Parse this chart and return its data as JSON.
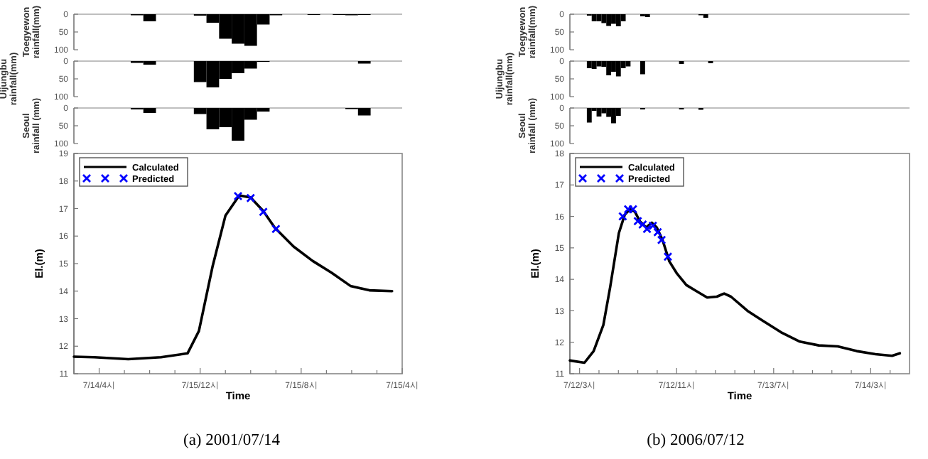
{
  "chart_data": [
    {
      "type": "bar",
      "ylabel": "Toegyewon rainfall(mm)",
      "color": "#000000",
      "xlim": [
        "2001-07-14T14:00",
        "2001-07-15T16:00"
      ],
      "ylim": [
        100,
        0
      ],
      "yticks": [
        0,
        50,
        100
      ],
      "tick_labels": "y",
      "x": [
        "2001-07-14T19:00",
        "2001-07-14T20:00",
        "2001-07-15T00:00",
        "2001-07-15T01:00",
        "2001-07-15T02:00",
        "2001-07-15T03:00",
        "2001-07-15T04:00",
        "2001-07-15T05:00",
        "2001-07-15T06:00",
        "2001-07-15T09:00",
        "2001-07-15T11:00",
        "2001-07-15T12:00",
        "2001-07-15T13:00"
      ],
      "values": [
        3,
        20,
        4,
        24,
        69,
        83,
        89,
        29,
        3,
        2,
        2,
        3,
        2
      ]
    },
    {
      "type": "bar",
      "ylabel": "Uijungbu rainfall(mm)",
      "color": "#000000",
      "xlim": [
        "2001-07-14T14:00",
        "2001-07-15T16:00"
      ],
      "ylim": [
        100,
        0
      ],
      "yticks": [
        0,
        50,
        100
      ],
      "tick_labels": "y",
      "x": [
        "2001-07-14T19:00",
        "2001-07-14T20:00",
        "2001-07-15T00:00",
        "2001-07-15T01:00",
        "2001-07-15T02:00",
        "2001-07-15T03:00",
        "2001-07-15T04:00",
        "2001-07-15T05:00",
        "2001-07-15T13:00"
      ],
      "values": [
        5,
        10,
        59,
        74,
        50,
        34,
        21,
        2,
        7
      ]
    },
    {
      "type": "bar",
      "ylabel": "Seoul rainfall (mm)",
      "color": "#000000",
      "xlim": [
        "2001-07-14T14:00",
        "2001-07-15T16:00"
      ],
      "ylim": [
        100,
        0
      ],
      "yticks": [
        0,
        50,
        100
      ],
      "tick_labels": "y",
      "x": [
        "2001-07-14T19:00",
        "2001-07-14T20:00",
        "2001-07-15T00:00",
        "2001-07-15T01:00",
        "2001-07-15T02:00",
        "2001-07-15T03:00",
        "2001-07-15T04:00",
        "2001-07-15T05:00",
        "2001-07-15T12:00",
        "2001-07-15T13:00"
      ],
      "values": [
        4,
        14,
        17,
        60,
        54,
        92,
        33,
        10,
        3,
        21
      ]
    },
    {
      "type": "line",
      "xlabel": "Time",
      "ylabel": "El.(m)",
      "legend": "top left",
      "line_style": "solid",
      "annotations": [
        "(a)  2001/07/14"
      ],
      "xlim": [
        "2001-07-14T14:00",
        "2001-07-15T16:00"
      ],
      "ylim": [
        11,
        19
      ],
      "yticks": [
        11,
        12,
        13,
        14,
        15,
        16,
        17,
        18,
        19
      ],
      "xticks": [
        {
          "value": "2001-07-14T16:00",
          "label": "7/14/4시"
        },
        {
          "value": "2001-07-14T18:00",
          "label": null
        },
        {
          "value": "2001-07-14T20:00",
          "label": null
        },
        {
          "value": "2001-07-14T22:00",
          "label": null
        },
        {
          "value": "2001-07-15T00:00",
          "label": "7/15/12시"
        },
        {
          "value": "2001-07-15T02:00",
          "label": null
        },
        {
          "value": "2001-07-15T04:00",
          "label": null
        },
        {
          "value": "2001-07-15T06:00",
          "label": null
        },
        {
          "value": "2001-07-15T08:00",
          "label": "7/15/8시"
        },
        {
          "value": "2001-07-15T10:00",
          "label": null
        },
        {
          "value": "2001-07-15T12:00",
          "label": null
        },
        {
          "value": "2001-07-15T14:00",
          "label": null
        },
        {
          "value": "2001-07-15T16:00",
          "label": "7/15/4시"
        }
      ],
      "series": [
        {
          "name": "Calculated",
          "color": "#000000",
          "x": [
            "2001-07-14T14:00",
            "2001-07-14T15:36",
            "2001-07-14T18:18",
            "2001-07-14T20:54",
            "2001-07-14T23:00",
            "2001-07-14T23:54",
            "2001-07-15T01:00",
            "2001-07-15T02:00",
            "2001-07-15T03:06",
            "2001-07-15T04:00",
            "2001-07-15T05:00",
            "2001-07-15T05:54",
            "2001-07-15T07:24",
            "2001-07-15T08:54",
            "2001-07-15T10:24",
            "2001-07-15T11:54",
            "2001-07-15T13:24",
            "2001-07-15T15:12"
          ],
          "values": [
            11.62,
            11.6,
            11.53,
            11.6,
            11.74,
            12.55,
            14.93,
            16.74,
            17.48,
            17.4,
            16.91,
            16.31,
            15.62,
            15.1,
            14.67,
            14.19,
            14.03,
            14.0
          ]
        },
        {
          "name": "Predicted",
          "type": "scatter",
          "marker": "cross",
          "color": "#0000ff",
          "x": [
            "2001-07-15T03:00",
            "2001-07-15T04:00",
            "2001-07-15T05:00",
            "2001-07-15T06:00"
          ],
          "values": [
            17.45,
            17.38,
            16.88,
            16.26
          ]
        }
      ]
    },
    {
      "type": "bar",
      "ylabel": "Toegyewon rainfall(mm)",
      "color": "#000000",
      "xlim": [
        "2006-07-12T01:00",
        "2006-07-14T23:00"
      ],
      "ylim": [
        100,
        0
      ],
      "yticks": [
        0,
        50,
        100
      ],
      "tick_labels": "y",
      "x": [
        "2006-07-12T05:00",
        "2006-07-12T06:00",
        "2006-07-12T07:00",
        "2006-07-12T08:00",
        "2006-07-12T09:00",
        "2006-07-12T10:00",
        "2006-07-12T11:00",
        "2006-07-12T12:00",
        "2006-07-12T16:00",
        "2006-07-12T17:00",
        "2006-07-13T04:00",
        "2006-07-13T05:00"
      ],
      "values": [
        4,
        20,
        20,
        25,
        33,
        27,
        34,
        20,
        6,
        8,
        3,
        10
      ]
    },
    {
      "type": "bar",
      "ylabel": "Uijungbu rainfall(mm)",
      "color": "#000000",
      "xlim": [
        "2006-07-12T01:00",
        "2006-07-14T23:00"
      ],
      "ylim": [
        100,
        0
      ],
      "yticks": [
        0,
        50,
        100
      ],
      "tick_labels": "y",
      "x": [
        "2006-07-12T05:00",
        "2006-07-12T06:00",
        "2006-07-12T07:00",
        "2006-07-12T08:00",
        "2006-07-12T09:00",
        "2006-07-12T10:00",
        "2006-07-12T11:00",
        "2006-07-12T12:00",
        "2006-07-12T13:00",
        "2006-07-12T16:00",
        "2006-07-13T00:00",
        "2006-07-13T06:00"
      ],
      "values": [
        20,
        22,
        15,
        16,
        40,
        30,
        43,
        20,
        15,
        37,
        8,
        6
      ]
    },
    {
      "type": "bar",
      "ylabel": "Seoul rainfall (mm)",
      "color": "#000000",
      "xlim": [
        "2006-07-12T01:00",
        "2006-07-14T23:00"
      ],
      "ylim": [
        100,
        0
      ],
      "yticks": [
        0,
        50,
        100
      ],
      "tick_labels": "y",
      "x": [
        "2006-07-12T05:00",
        "2006-07-12T06:00",
        "2006-07-12T07:00",
        "2006-07-12T08:00",
        "2006-07-12T09:00",
        "2006-07-12T10:00",
        "2006-07-12T11:00",
        "2006-07-12T16:00",
        "2006-07-13T00:00",
        "2006-07-13T04:00"
      ],
      "values": [
        41,
        8,
        24,
        15,
        25,
        43,
        22,
        4,
        4,
        5
      ]
    },
    {
      "type": "line",
      "xlabel": "Time",
      "ylabel": "El.(m)",
      "legend": "top left",
      "line_style": "solid",
      "annotations": [
        "(b)  2006/07/12"
      ],
      "xlim": [
        "2006-07-12T01:00",
        "2006-07-14T23:00"
      ],
      "ylim": [
        11,
        18
      ],
      "yticks": [
        11,
        12,
        13,
        14,
        15,
        16,
        17,
        18
      ],
      "xticks": [
        {
          "value": "2006-07-12T03:00",
          "label": "7/12/3시"
        },
        {
          "value": "2006-07-12T07:00",
          "label": null
        },
        {
          "value": "2006-07-12T11:00",
          "label": null
        },
        {
          "value": "2006-07-12T15:00",
          "label": null
        },
        {
          "value": "2006-07-12T19:00",
          "label": null
        },
        {
          "value": "2006-07-12T23:00",
          "label": "7/12/11시"
        },
        {
          "value": "2006-07-13T03:00",
          "label": null
        },
        {
          "value": "2006-07-13T07:00",
          "label": null
        },
        {
          "value": "2006-07-13T11:00",
          "label": null
        },
        {
          "value": "2006-07-13T15:00",
          "label": null
        },
        {
          "value": "2006-07-13T19:00",
          "label": "7/13/7시"
        },
        {
          "value": "2006-07-13T23:00",
          "label": null
        },
        {
          "value": "2006-07-14T03:00",
          "label": null
        },
        {
          "value": "2006-07-14T07:00",
          "label": null
        },
        {
          "value": "2006-07-14T11:00",
          "label": null
        },
        {
          "value": "2006-07-14T15:00",
          "label": "7/14/3시"
        },
        {
          "value": "2006-07-14T19:00",
          "label": null
        }
      ],
      "series": [
        {
          "name": "Calculated",
          "color": "#000000",
          "x": [
            "2006-07-12T01:00",
            "2006-07-12T04:00",
            "2006-07-12T05:54",
            "2006-07-12T07:54",
            "2006-07-12T09:18",
            "2006-07-12T11:06",
            "2006-07-12T12:18",
            "2006-07-12T13:24",
            "2006-07-12T14:24",
            "2006-07-12T15:24",
            "2006-07-12T16:42",
            "2006-07-12T17:54",
            "2006-07-12T18:54",
            "2006-07-12T20:06",
            "2006-07-12T21:30",
            "2006-07-12T23:00",
            "2006-07-13T01:00",
            "2006-07-13T02:54",
            "2006-07-13T05:18",
            "2006-07-13T07:18",
            "2006-07-13T08:48",
            "2006-07-13T10:12",
            "2006-07-13T13:36",
            "2006-07-13T16:36",
            "2006-07-13T20:30",
            "2006-07-14T00:24",
            "2006-07-14T04:18",
            "2006-07-14T08:12",
            "2006-07-14T12:06",
            "2006-07-14T16:00",
            "2006-07-14T19:24",
            "2006-07-14T21:00"
          ],
          "values": [
            11.42,
            11.35,
            11.72,
            12.55,
            13.75,
            15.47,
            16.05,
            16.23,
            16.15,
            15.85,
            15.65,
            15.8,
            15.65,
            15.25,
            14.57,
            14.2,
            13.82,
            13.64,
            13.42,
            13.45,
            13.55,
            13.45,
            13.0,
            12.7,
            12.32,
            12.02,
            11.9,
            11.87,
            11.72,
            11.62,
            11.57,
            11.65
          ]
        },
        {
          "name": "Predicted",
          "type": "scatter",
          "marker": "cross",
          "color": "#0000ff",
          "x": [
            "2006-07-12T11:54",
            "2006-07-12T13:00",
            "2006-07-12T14:00",
            "2006-07-12T15:00",
            "2006-07-12T16:00",
            "2006-07-12T16:54",
            "2006-07-12T18:06",
            "2006-07-12T19:06",
            "2006-07-12T19:54",
            "2006-07-12T21:12"
          ],
          "values": [
            16.0,
            16.23,
            16.23,
            15.85,
            15.74,
            15.6,
            15.7,
            15.5,
            15.25,
            14.72
          ]
        }
      ]
    }
  ]
}
